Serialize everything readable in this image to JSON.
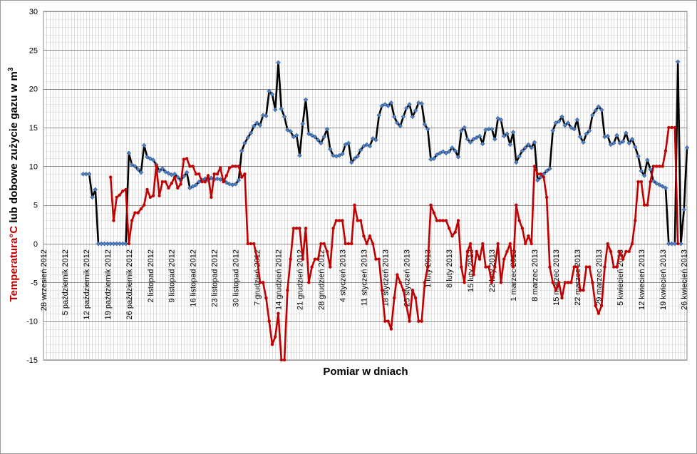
{
  "chart_data": {
    "type": "line",
    "xlabel": "Pomiar w dniach",
    "ylabel_part1": "Temperatura°C",
    "ylabel_part2": "  lub dobowe zużycie gazu w m",
    "ylabel_sup": "3",
    "ylim": [
      -15,
      30
    ],
    "yticks": [
      -15,
      -10,
      -5,
      0,
      5,
      10,
      15,
      20,
      25,
      30
    ],
    "x_range_days": [
      0,
      211
    ],
    "grid": "on",
    "legend": "none",
    "x_ticks": [
      {
        "day": 0,
        "label": "28 wrzesień 2012"
      },
      {
        "day": 7,
        "label": "5 październik 2012"
      },
      {
        "day": 14,
        "label": "12 październik 2012"
      },
      {
        "day": 21,
        "label": "19 październik 2012"
      },
      {
        "day": 28,
        "label": "26 październik 2012"
      },
      {
        "day": 35,
        "label": "2 listopad 2012"
      },
      {
        "day": 42,
        "label": "9 listopad 2012"
      },
      {
        "day": 49,
        "label": "16 listopad 2012"
      },
      {
        "day": 56,
        "label": "23 listopad 2012"
      },
      {
        "day": 63,
        "label": "30 listopad 2012"
      },
      {
        "day": 70,
        "label": "7 grudzień 2012"
      },
      {
        "day": 77,
        "label": "14 grudzień 2012"
      },
      {
        "day": 84,
        "label": "21 grudzień 2012"
      },
      {
        "day": 91,
        "label": "28 grudzień 2012"
      },
      {
        "day": 98,
        "label": "4 styczeń 2013"
      },
      {
        "day": 105,
        "label": "11 styczeń 2013"
      },
      {
        "day": 112,
        "label": "18 styczeń 2013"
      },
      {
        "day": 119,
        "label": "25 styczeń 2013"
      },
      {
        "day": 126,
        "label": "1 luty 2013"
      },
      {
        "day": 133,
        "label": "8 luty 2013"
      },
      {
        "day": 140,
        "label": "15 luty 2013"
      },
      {
        "day": 147,
        "label": "22 luty 2013"
      },
      {
        "day": 154,
        "label": "1 marzec 2013"
      },
      {
        "day": 161,
        "label": "8 marzec 2013"
      },
      {
        "day": 168,
        "label": "15 marzec 2013"
      },
      {
        "day": 175,
        "label": "22 marzec 2013"
      },
      {
        "day": 182,
        "label": "29 marzec 2013"
      },
      {
        "day": 189,
        "label": "5 kwiecień 2013"
      },
      {
        "day": 196,
        "label": "12 kwiecień 2013"
      },
      {
        "day": 203,
        "label": "19 kwiecień 2013"
      },
      {
        "day": 210,
        "label": "26 kwiecień 2013"
      }
    ],
    "series": [
      {
        "color": "#000000",
        "marker_color": "#4f81bd",
        "start_day": 13,
        "values": [
          9,
          9,
          9,
          6,
          7,
          0,
          0,
          0,
          0,
          0,
          0,
          0,
          0,
          0,
          0,
          11.7,
          10.2,
          10,
          9.6,
          9.2,
          12.7,
          11.2,
          11,
          10.8,
          10.2,
          9.4,
          9.7,
          9.3,
          9.1,
          8.9,
          9,
          8.6,
          8.2,
          8.7,
          9.2,
          7.2,
          7.4,
          7.6,
          8,
          8.2,
          8.4,
          8.2,
          8.5,
          8.3,
          8.4,
          8.3,
          8.2,
          7.9,
          7.7,
          7.6,
          7.7,
          8.2,
          12,
          13,
          13.7,
          14.3,
          15.2,
          15.6,
          15.3,
          16.6,
          16.5,
          19.7,
          19.3,
          17.3,
          23.4,
          17.4,
          16.4,
          14.7,
          14.5,
          13.8,
          14,
          11.4,
          15.5,
          18.6,
          14.2,
          14,
          13.8,
          13.4,
          13,
          13.8,
          14.8,
          12.2,
          11.4,
          11.3,
          11.4,
          11.6,
          12.8,
          13,
          10.5,
          11,
          11.3,
          12.1,
          12.6,
          12.8,
          12.6,
          13.6,
          13.4,
          16.6,
          17.8,
          18,
          17.8,
          18.2,
          16.4,
          15.6,
          15.2,
          16.4,
          17.5,
          18,
          16.4,
          17.2,
          18.2,
          18.1,
          15.4,
          14.8,
          10.9,
          11,
          11.5,
          11.7,
          11.9,
          11.7,
          11.9,
          12.4,
          12,
          11.2,
          14.6,
          15,
          13.5,
          13.1,
          13.5,
          13.7,
          13.9,
          12.9,
          14.7,
          14.8,
          14.8,
          13.5,
          16.2,
          16,
          13.9,
          14.2,
          12.8,
          14.4,
          10.5,
          11.3,
          12,
          12.4,
          12.8,
          12.4,
          13.1,
          8.2,
          8.6,
          9,
          9.4,
          9.7,
          14.6,
          15.6,
          15.8,
          16.4,
          15.3,
          15.6,
          15,
          14.8,
          16,
          13.8,
          13.1,
          14.2,
          14.6,
          16.6,
          17.2,
          17.7,
          17.3,
          13.8,
          13.9,
          12.8,
          13,
          14,
          13,
          13.2,
          14.3,
          13,
          13.5,
          12.5,
          11.3,
          9.4,
          8.8,
          10.8,
          9.6,
          8.1,
          7.8,
          7.6,
          7.4,
          7.2,
          0,
          0,
          0,
          23.5,
          0,
          4.4,
          12.4
        ]
      },
      {
        "color": "#c00000",
        "marker_color": "#c00000",
        "start_day": 22,
        "values": [
          8.6,
          3,
          6,
          6.3,
          6.8,
          7,
          0,
          3,
          4,
          4,
          4.5,
          5,
          7,
          6,
          6.2,
          10.1,
          6.2,
          8,
          8,
          7.2,
          7.8,
          8.6,
          7.2,
          7.7,
          10.9,
          11,
          10,
          10,
          9,
          9,
          8,
          8,
          8.8,
          6,
          9,
          9,
          9.8,
          8,
          8.8,
          9.8,
          10,
          10,
          10,
          8.6,
          9,
          0,
          0,
          0,
          -1.8,
          -5,
          -5,
          -7,
          -10,
          -13,
          -12,
          -9,
          -15,
          -15,
          -6,
          -2,
          2,
          2,
          2,
          -2,
          2,
          -5,
          -3,
          -2,
          -2,
          0,
          0,
          -1,
          -3,
          2,
          3,
          3,
          3,
          0,
          0,
          0,
          5,
          3,
          3,
          1,
          0,
          1,
          0,
          -2,
          -2,
          -6,
          -10,
          -10,
          -11,
          -7,
          -4,
          -5,
          -6,
          -8,
          -10,
          -6,
          -7,
          -10,
          -10,
          -5,
          -3,
          5,
          4,
          3,
          3,
          3,
          3,
          2,
          1,
          1.5,
          3,
          -3,
          -5,
          -1,
          0,
          -4,
          -1,
          -2,
          0,
          -3,
          -3,
          -5,
          -3,
          0,
          -5,
          -2,
          -1,
          0,
          -3,
          5,
          3,
          2,
          0,
          1,
          0,
          10,
          9,
          9,
          8.6,
          6,
          -3,
          -5,
          -6,
          -5,
          -7,
          -5,
          -5,
          -5,
          -3,
          -3,
          -6,
          -6,
          -3,
          -3,
          -5,
          -8,
          -9,
          -8,
          -3,
          0,
          -1,
          -3,
          -3,
          -1,
          -2,
          -1,
          -1,
          0,
          3,
          8,
          8,
          5,
          5,
          8,
          10,
          10,
          10,
          10,
          12,
          15,
          15,
          15,
          0
        ]
      }
    ]
  }
}
